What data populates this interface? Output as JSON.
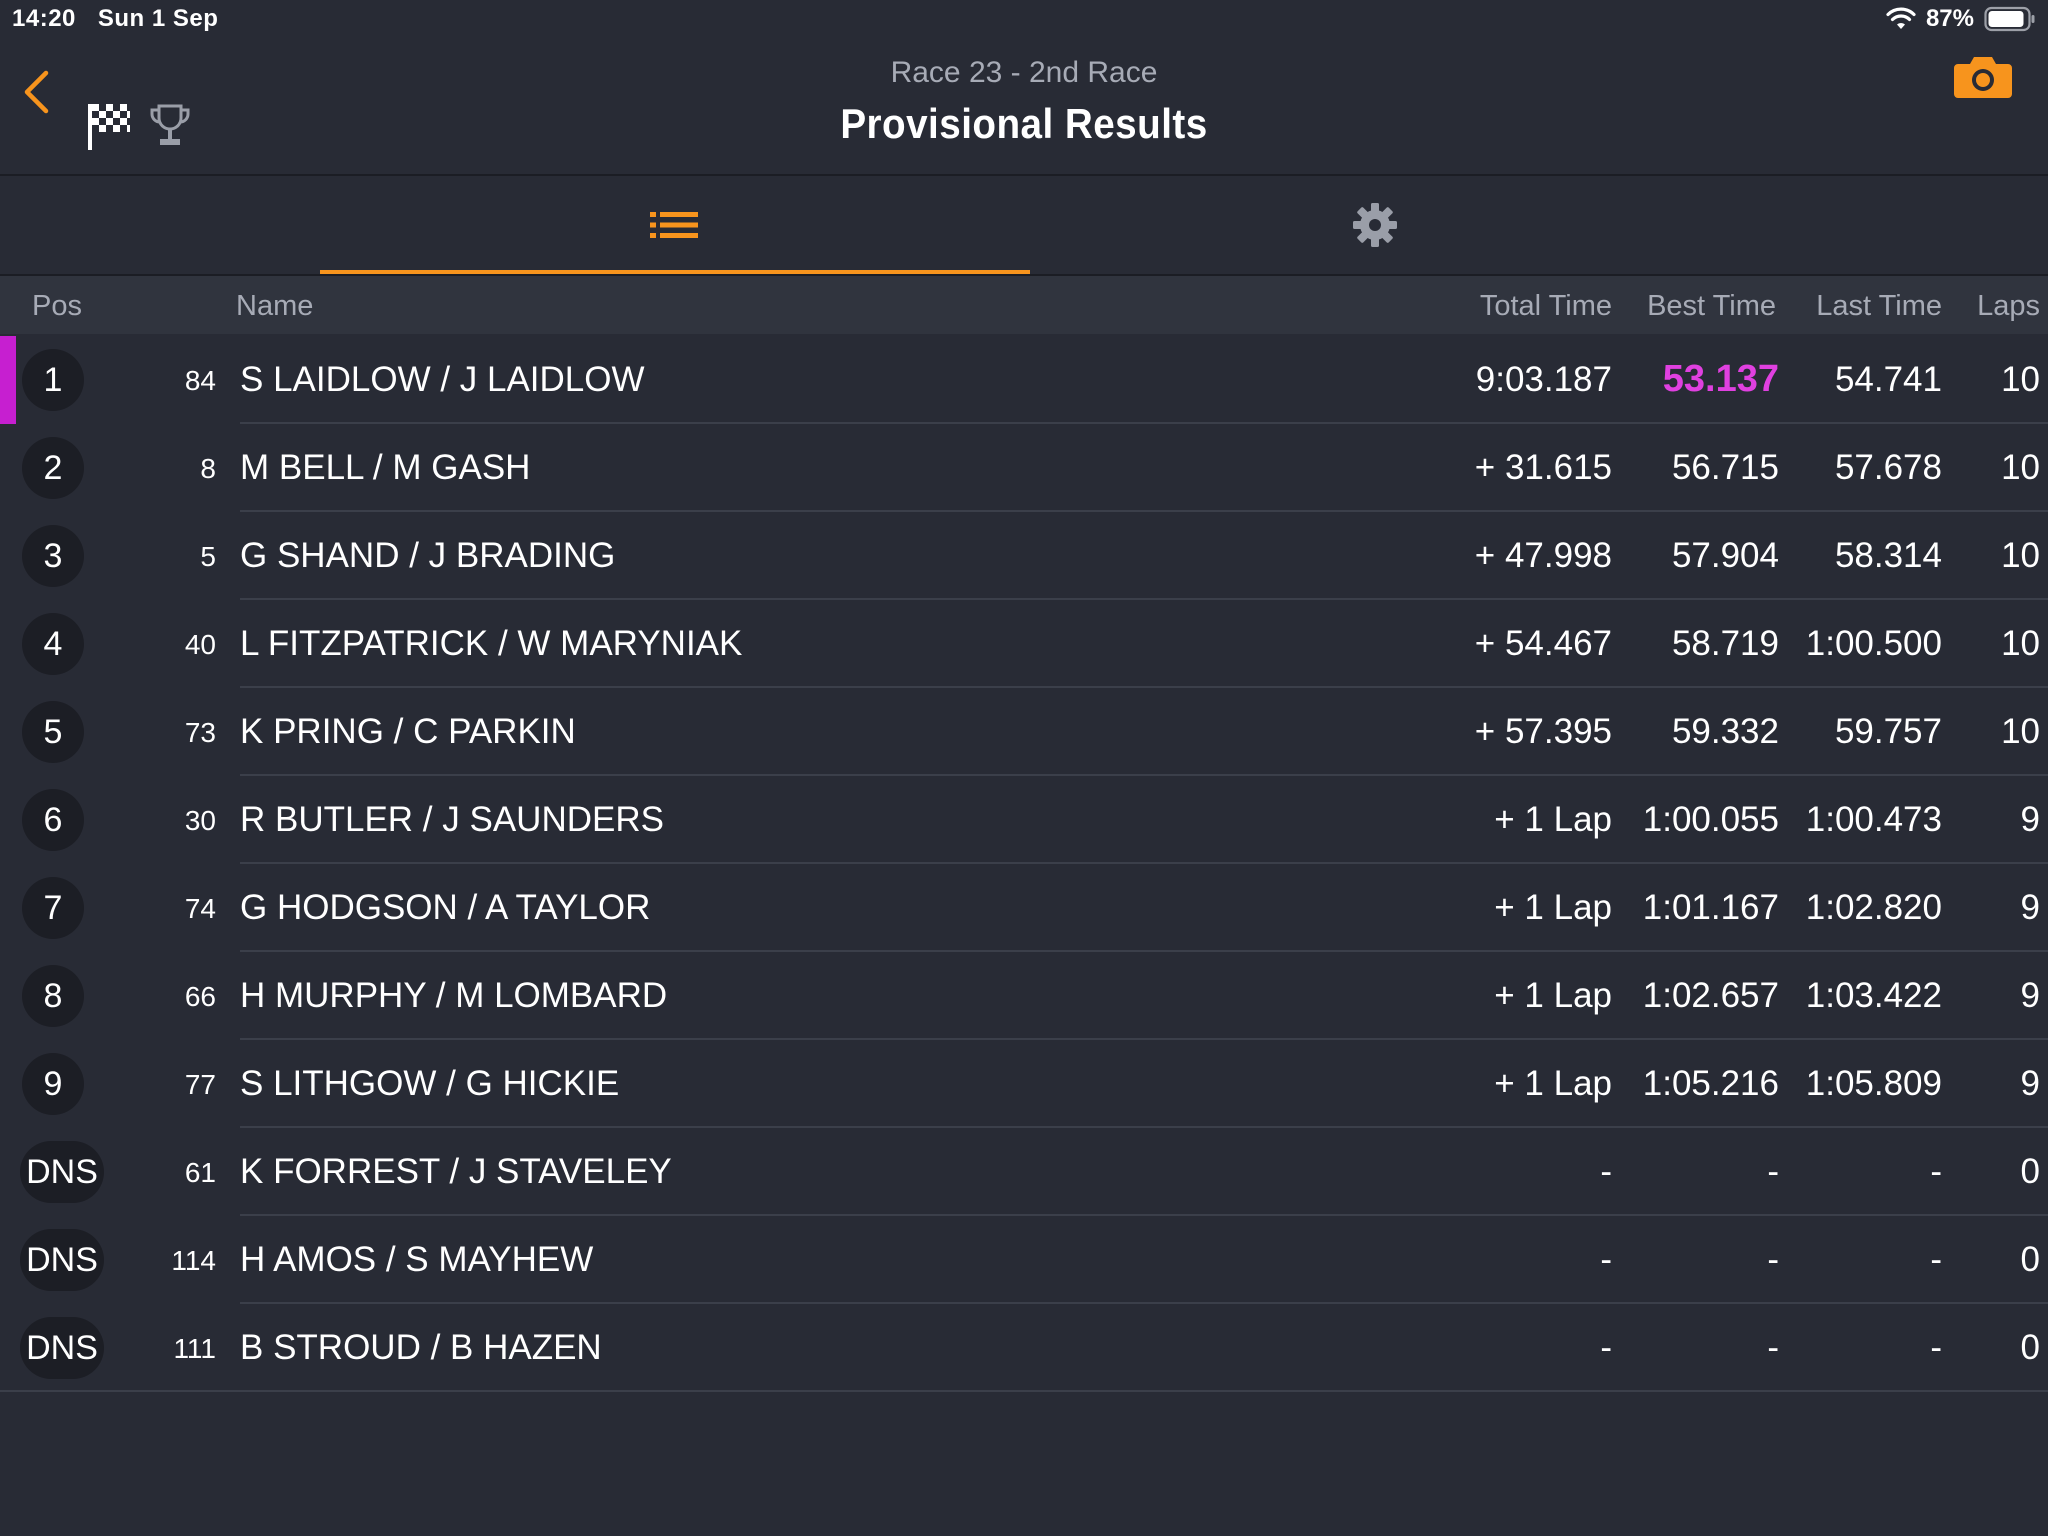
{
  "status_bar": {
    "time": "14:20",
    "date": "Sun 1 Sep",
    "battery": "87%"
  },
  "header": {
    "subtitle": "Race 23 - 2nd Race",
    "title": "Provisional Results",
    "back_icon": "chevron-left-icon",
    "flag_icon": "chequered-flag-icon",
    "trophy_icon": "trophy-icon",
    "camera_icon": "camera-icon"
  },
  "tabs": [
    {
      "icon": "list-icon",
      "active": true
    },
    {
      "icon": "gear-icon",
      "active": false
    }
  ],
  "columns": {
    "pos": "Pos",
    "name": "Name",
    "total_time": "Total Time",
    "best_time": "Best Time",
    "last_time": "Last Time",
    "laps": "Laps"
  },
  "colors": {
    "accent": "#f7941d",
    "fastest": "#e040e0",
    "background": "#282b35"
  },
  "results": [
    {
      "pos": "1",
      "no": "84",
      "name": "S LAIDLOW / J LAIDLOW",
      "total": "9:03.187",
      "best": "53.137",
      "last": "54.741",
      "laps": "10"
    },
    {
      "pos": "2",
      "no": "8",
      "name": "M BELL / M GASH",
      "total": "+ 31.615",
      "best": "56.715",
      "last": "57.678",
      "laps": "10"
    },
    {
      "pos": "3",
      "no": "5",
      "name": "G SHAND / J BRADING",
      "total": "+ 47.998",
      "best": "57.904",
      "last": "58.314",
      "laps": "10"
    },
    {
      "pos": "4",
      "no": "40",
      "name": "L FITZPATRICK / W MARYNIAK",
      "total": "+ 54.467",
      "best": "58.719",
      "last": "1:00.500",
      "laps": "10"
    },
    {
      "pos": "5",
      "no": "73",
      "name": "K PRING / C PARKIN",
      "total": "+ 57.395",
      "best": "59.332",
      "last": "59.757",
      "laps": "10"
    },
    {
      "pos": "6",
      "no": "30",
      "name": "R BUTLER / J SAUNDERS",
      "total": "+ 1 Lap",
      "best": "1:00.055",
      "last": "1:00.473",
      "laps": "9"
    },
    {
      "pos": "7",
      "no": "74",
      "name": "G HODGSON / A TAYLOR",
      "total": "+ 1 Lap",
      "best": "1:01.167",
      "last": "1:02.820",
      "laps": "9"
    },
    {
      "pos": "8",
      "no": "66",
      "name": "H MURPHY / M LOMBARD",
      "total": "+ 1 Lap",
      "best": "1:02.657",
      "last": "1:03.422",
      "laps": "9"
    },
    {
      "pos": "9",
      "no": "77",
      "name": "S LITHGOW / G HICKIE",
      "total": "+ 1 Lap",
      "best": "1:05.216",
      "last": "1:05.809",
      "laps": "9"
    },
    {
      "pos": "DNS",
      "no": "61",
      "name": "K FORREST / J STAVELEY",
      "total": "-",
      "best": "-",
      "last": "-",
      "laps": "0"
    },
    {
      "pos": "DNS",
      "no": "114",
      "name": "H AMOS / S MAYHEW",
      "total": "-",
      "best": "-",
      "last": "-",
      "laps": "0"
    },
    {
      "pos": "DNS",
      "no": "111",
      "name": "B STROUD / B HAZEN",
      "total": "-",
      "best": "-",
      "last": "-",
      "laps": "0"
    }
  ]
}
